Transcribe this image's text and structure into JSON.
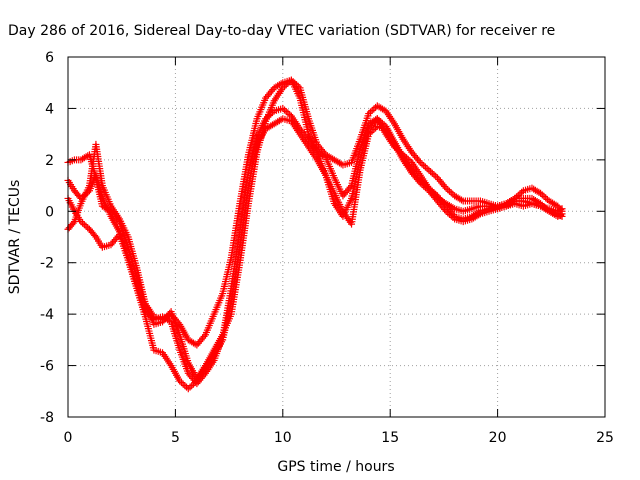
{
  "chart_data": {
    "type": "scatter",
    "title": "Day 286 of 2016, Sidereal Day-to-day VTEC variation (SDTVAR) for receiver re",
    "xlabel": "GPS time / hours",
    "ylabel": "SDTVAR / TECUs",
    "xlim": [
      0,
      25
    ],
    "ylim": [
      -8,
      6
    ],
    "xticks": [
      0,
      5,
      10,
      15,
      20,
      25
    ],
    "yticks": [
      -8,
      -6,
      -4,
      -2,
      0,
      2,
      4,
      6
    ],
    "grid": true,
    "marker": "plus",
    "color": "#ff0000",
    "series": [
      {
        "x": [
          0.0,
          0.3,
          0.6,
          1.0,
          1.3,
          1.6,
          2.0,
          2.4,
          2.8,
          3.2,
          3.6,
          4.0,
          4.4,
          4.8,
          5.2,
          5.6,
          6.0,
          6.4,
          6.8,
          7.2,
          7.6,
          8.0,
          8.4,
          8.8,
          9.2,
          9.6,
          10.0,
          10.4,
          10.8,
          11.2,
          11.6,
          12.0,
          12.4,
          12.8,
          13.2,
          13.6,
          14.0,
          14.4,
          14.8,
          15.2,
          15.6,
          16.0,
          16.4,
          16.8,
          17.2,
          17.6,
          18.0,
          18.4,
          18.8,
          19.2,
          19.6,
          20.0,
          20.4,
          20.8,
          21.2,
          21.6,
          22.0,
          22.4,
          22.8,
          23.0
        ],
        "y": [
          1.9,
          2.0,
          2.0,
          2.2,
          1.3,
          0.2,
          0.0,
          -0.4,
          -1.4,
          -2.5,
          -3.6,
          -4.1,
          -4.2,
          -4.0,
          -4.4,
          -5.0,
          -5.2,
          -4.8,
          -4.0,
          -3.2,
          -1.8,
          0.3,
          2.2,
          3.6,
          4.4,
          4.8,
          5.0,
          5.1,
          4.4,
          3.0,
          2.3,
          1.4,
          0.3,
          -0.2,
          0.5,
          2.0,
          3.2,
          3.6,
          3.0,
          2.5,
          2.2,
          1.9,
          1.4,
          0.9,
          0.5,
          0.3,
          0.1,
          0.0,
          0.1,
          0.2,
          0.2,
          0.1,
          0.2,
          0.3,
          0.2,
          0.3,
          0.2,
          0.1,
          0.0,
          0.1
        ]
      },
      {
        "x": [
          0.0,
          0.3,
          0.6,
          1.0,
          1.3,
          1.6,
          2.0,
          2.4,
          2.8,
          3.2,
          3.6,
          4.0,
          4.4,
          4.8,
          5.2,
          5.6,
          6.0,
          6.4,
          6.8,
          7.2,
          7.6,
          8.0,
          8.4,
          8.8,
          9.2,
          9.6,
          10.0,
          10.4,
          10.8,
          11.2,
          11.6,
          12.0,
          12.4,
          12.8,
          13.2,
          13.6,
          14.0,
          14.4,
          14.8,
          15.2,
          15.6,
          16.0,
          16.4,
          16.8,
          17.2,
          17.6,
          18.0,
          18.4,
          18.8,
          19.2,
          19.6,
          20.0,
          20.4,
          20.8,
          21.2,
          21.6,
          22.0,
          22.4,
          22.8,
          23.0
        ],
        "y": [
          -0.7,
          -0.4,
          0.3,
          1.0,
          2.6,
          1.0,
          0.2,
          -0.3,
          -1.0,
          -2.2,
          -3.6,
          -4.4,
          -4.3,
          -3.9,
          -4.8,
          -5.9,
          -6.5,
          -6.0,
          -5.4,
          -4.8,
          -4.0,
          -2.0,
          0.3,
          2.3,
          3.5,
          4.3,
          4.8,
          5.1,
          4.8,
          3.6,
          2.6,
          2.2,
          2.0,
          1.8,
          1.9,
          2.8,
          3.8,
          4.1,
          3.9,
          3.4,
          2.8,
          2.3,
          1.9,
          1.6,
          1.3,
          0.9,
          0.6,
          0.4,
          0.4,
          0.4,
          0.3,
          0.2,
          0.3,
          0.5,
          0.8,
          0.9,
          0.7,
          0.4,
          0.2,
          0.0
        ]
      },
      {
        "x": [
          0.0,
          0.3,
          0.6,
          1.0,
          1.3,
          1.6,
          2.0,
          2.4,
          2.8,
          3.2,
          3.6,
          4.0,
          4.4,
          4.8,
          5.2,
          5.6,
          6.0,
          6.4,
          6.8,
          7.2,
          7.6,
          8.0,
          8.4,
          8.8,
          9.2,
          9.6,
          10.0,
          10.4,
          10.8,
          11.2,
          11.6,
          12.0,
          12.4,
          12.8,
          13.2,
          13.6,
          14.0,
          14.4,
          14.8,
          15.2,
          15.6,
          16.0,
          16.4,
          16.8,
          17.2,
          17.6,
          18.0,
          18.4,
          18.8,
          19.2,
          19.6,
          20.0,
          20.4,
          20.8,
          21.2,
          21.6,
          22.0,
          22.4,
          22.8,
          23.0
        ],
        "y": [
          1.2,
          0.8,
          0.5,
          0.8,
          1.4,
          0.5,
          -0.2,
          -0.8,
          -1.8,
          -2.9,
          -3.9,
          -4.2,
          -4.1,
          -4.3,
          -5.4,
          -6.3,
          -6.7,
          -6.3,
          -5.8,
          -4.9,
          -3.0,
          -0.8,
          1.5,
          2.9,
          3.6,
          3.9,
          4.0,
          3.7,
          3.2,
          2.8,
          2.3,
          2.1,
          1.3,
          0.6,
          1.0,
          2.4,
          3.4,
          3.6,
          3.3,
          2.7,
          2.1,
          1.6,
          1.2,
          0.9,
          0.6,
          0.2,
          -0.2,
          -0.3,
          -0.2,
          0.0,
          0.1,
          0.2,
          0.3,
          0.5,
          0.5,
          0.5,
          0.3,
          0.0,
          -0.2,
          -0.1
        ]
      },
      {
        "x": [
          0.0,
          0.3,
          0.6,
          1.0,
          1.3,
          1.6,
          2.0,
          2.4,
          2.8,
          3.2,
          3.6,
          4.0,
          4.4,
          4.8,
          5.2,
          5.6,
          6.0,
          6.4,
          6.8,
          7.2,
          7.6,
          8.0,
          8.4,
          8.8,
          9.2,
          9.6,
          10.0,
          10.4,
          10.8,
          11.2,
          11.6,
          12.0,
          12.4,
          12.8,
          13.2,
          13.6,
          14.0,
          14.4,
          14.8,
          15.2,
          15.6,
          16.0,
          16.4,
          16.8,
          17.2,
          17.6,
          18.0,
          18.4,
          18.8,
          19.2,
          19.6,
          20.0,
          20.4,
          20.8,
          21.2,
          21.6,
          22.0,
          22.4,
          22.8,
          23.0
        ],
        "y": [
          0.5,
          0.0,
          -0.4,
          -0.7,
          -1.0,
          -1.4,
          -1.3,
          -0.9,
          -1.9,
          -3.0,
          -4.1,
          -5.4,
          -5.5,
          -6.0,
          -6.6,
          -6.9,
          -6.6,
          -6.1,
          -5.6,
          -5.0,
          -3.5,
          -1.4,
          1.0,
          2.6,
          3.2,
          3.4,
          3.6,
          3.5,
          3.0,
          2.5,
          2.0,
          1.4,
          0.7,
          0.0,
          -0.5,
          1.6,
          3.0,
          3.3,
          3.2,
          2.6,
          2.0,
          1.5,
          1.1,
          0.8,
          0.4,
          0.0,
          -0.3,
          -0.4,
          -0.3,
          -0.1,
          0.0,
          0.1,
          0.2,
          0.4,
          0.4,
          0.3,
          0.2,
          0.0,
          -0.1,
          -0.2
        ]
      }
    ]
  }
}
